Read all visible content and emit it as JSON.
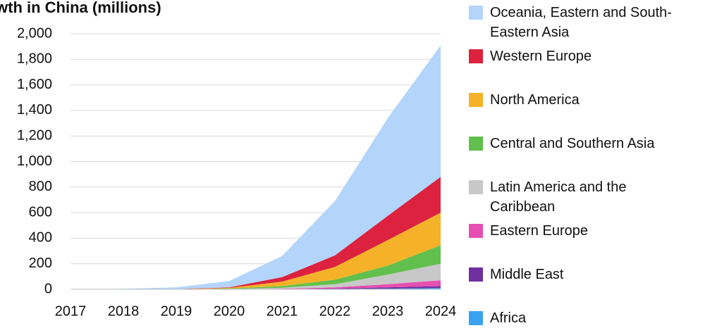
{
  "chart_data": {
    "type": "area",
    "stacked": true,
    "title": "wth in China (millions)",
    "categories": [
      "2017",
      "2018",
      "2019",
      "2020",
      "2021",
      "2022",
      "2023",
      "2024"
    ],
    "series": [
      {
        "name": "Africa",
        "color": "#3aa3f0",
        "values": [
          0,
          0,
          0,
          0,
          1,
          2,
          5,
          10
        ]
      },
      {
        "name": "Middle East",
        "color": "#7030a0",
        "values": [
          0,
          0,
          0,
          0,
          1,
          4,
          10,
          15
        ]
      },
      {
        "name": "Eastern Europe",
        "color": "#e64fb2",
        "values": [
          0,
          0,
          0,
          1,
          3,
          9,
          25,
          45
        ]
      },
      {
        "name": "Latin America and the Caribbean",
        "color": "#c8c8c8",
        "values": [
          0,
          0,
          0,
          2,
          7,
          25,
          75,
          130
        ]
      },
      {
        "name": "Central and Southern Asia",
        "color": "#61c04d",
        "values": [
          0,
          0,
          0,
          3,
          13,
          35,
          70,
          145
        ]
      },
      {
        "name": "North America",
        "color": "#f5b228",
        "values": [
          0,
          0,
          1,
          5,
          35,
          100,
          200,
          255
        ]
      },
      {
        "name": "Western Europe",
        "color": "#dc223f",
        "values": [
          0,
          0,
          1,
          4,
          35,
          90,
          190,
          280
        ]
      },
      {
        "name": "Oceania, Eastern and South-Eastern Asia",
        "color": "#b3d4fb",
        "values": [
          1,
          4,
          13,
          50,
          165,
          425,
          765,
          1030
        ]
      }
    ],
    "ylim": [
      0,
      2000
    ],
    "yticks": [
      0,
      200,
      400,
      600,
      800,
      {
        "value": 1000,
        "label": "1,000"
      },
      {
        "value": 1200,
        "label": "1,200"
      },
      {
        "value": 1400,
        "label": "1,400"
      },
      {
        "value": 1600,
        "label": "1,600"
      },
      {
        "value": 1800,
        "label": "1,800"
      },
      {
        "value": 2000,
        "label": "2,000"
      }
    ],
    "grid": true,
    "legend": "right"
  }
}
